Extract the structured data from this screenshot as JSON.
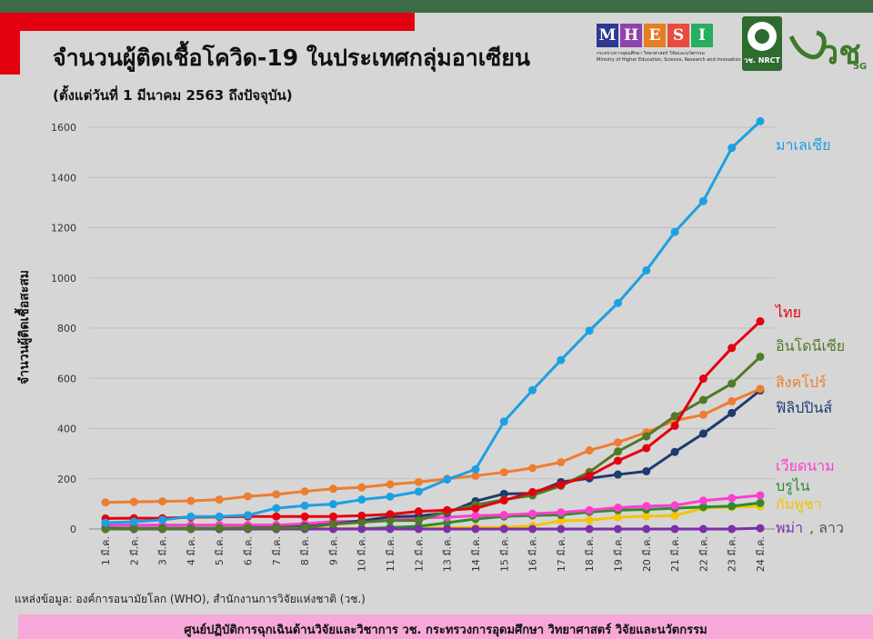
{
  "header": {
    "title": "จำนวนผู้ติดเชื้อโควิด-19 ในประเทศกลุ่มอาเซียน",
    "subtitle": "(ตั้งแต่วันที่ 1 มีนาคม 2563 ถึงปัจจุบัน)"
  },
  "logos": {
    "mhesi_letters": [
      "M",
      "H",
      "E",
      "S",
      "I"
    ],
    "mhesi_colors": [
      "#2b3990",
      "#8e44ad",
      "#e67e22",
      "#e74c3c",
      "#27ae60"
    ],
    "mhesi_caption_th": "กระทรวงการอุดมศึกษา วิทยาศาสตร์ วิจัยและนวัตกรรม",
    "mhesi_caption_en": "Ministry of Higher Education, Science, Research and Innovation",
    "nrct_label": "วช. NRCT",
    "vch_text": "วช",
    "vch_5g": "5G"
  },
  "chart_data": {
    "type": "line",
    "title": "จำนวนผู้ติดเชื้อโควิด-19 ในประเทศกลุ่มอาเซียน",
    "xlabel": "",
    "ylabel": "จำนวนผู้ติดเชื้อสะสม",
    "ylim": [
      0,
      1600
    ],
    "yticks": [
      0,
      200,
      400,
      600,
      800,
      1000,
      1200,
      1400,
      1600
    ],
    "grid": true,
    "categories": [
      "1 มี.ค.",
      "2 มี.ค.",
      "3 มี.ค.",
      "4 มี.ค.",
      "5 มี.ค.",
      "6 มี.ค.",
      "7 มี.ค.",
      "8 มี.ค.",
      "9 มี.ค.",
      "10 มี.ค.",
      "11 มี.ค.",
      "12 มี.ค.",
      "13 มี.ค.",
      "14 มี.ค.",
      "15 มี.ค.",
      "16 มี.ค.",
      "17 มี.ค.",
      "18 มี.ค.",
      "19 มี.ค.",
      "20 มี.ค.",
      "21 มี.ค.",
      "22 มี.ค.",
      "23 มี.ค.",
      "24 มี.ค."
    ],
    "series": [
      {
        "name": "กัมพูชา",
        "color": "#f5c400",
        "values": [
          1,
          1,
          1,
          1,
          1,
          1,
          1,
          1,
          2,
          2,
          3,
          3,
          5,
          7,
          7,
          12,
          33,
          35,
          47,
          51,
          53,
          84,
          87,
          91
        ]
      },
      {
        "name": "บรูไน",
        "color": "#2e8b2e",
        "values": [
          0,
          0,
          0,
          0,
          0,
          0,
          0,
          0,
          0,
          1,
          6,
          11,
          25,
          40,
          50,
          54,
          56,
          68,
          75,
          78,
          83,
          88,
          91,
          104
        ]
      },
      {
        "name": "เวียดนาม",
        "color": "#ff3dcf",
        "values": [
          16,
          16,
          16,
          16,
          16,
          16,
          16,
          21,
          30,
          31,
          39,
          44,
          47,
          53,
          56,
          61,
          66,
          75,
          85,
          91,
          94,
          113,
          123,
          134
        ]
      },
      {
        "name": "พม่า, ลาว",
        "color": "#7b2fa8",
        "values": [
          0,
          0,
          0,
          0,
          0,
          0,
          0,
          0,
          0,
          0,
          0,
          0,
          0,
          0,
          0,
          0,
          0,
          0,
          0,
          0,
          0,
          0,
          0,
          3
        ]
      },
      {
        "name": "ฟิลิปปินส์",
        "color": "#1f3a6e",
        "values": [
          3,
          3,
          3,
          3,
          3,
          5,
          6,
          10,
          20,
          33,
          49,
          52,
          64,
          111,
          140,
          142,
          187,
          202,
          217,
          230,
          307,
          380,
          462,
          552
        ]
      },
      {
        "name": "สิงคโปร์",
        "color": "#ed7d31",
        "values": [
          106,
          108,
          110,
          112,
          117,
          130,
          138,
          150,
          160,
          166,
          178,
          187,
          200,
          212,
          226,
          243,
          266,
          313,
          345,
          385,
          432,
          455,
          509,
          558
        ]
      },
      {
        "name": "อินโดนีเซีย",
        "color": "#4f7a28",
        "values": [
          0,
          2,
          2,
          2,
          4,
          4,
          4,
          6,
          19,
          27,
          34,
          34,
          69,
          96,
          117,
          134,
          172,
          227,
          309,
          369,
          450,
          514,
          579,
          686
        ]
      },
      {
        "name": "ไทย",
        "color": "#e3000f",
        "values": [
          42,
          43,
          43,
          47,
          48,
          50,
          50,
          50,
          50,
          53,
          59,
          70,
          75,
          82,
          114,
          147,
          177,
          212,
          272,
          322,
          411,
          599,
          721,
          827
        ]
      },
      {
        "name": "มาเลเซีย",
        "color": "#1ba1e2",
        "values": [
          25,
          29,
          36,
          50,
          50,
          55,
          83,
          93,
          99,
          117,
          129,
          149,
          197,
          238,
          428,
          553,
          673,
          790,
          900,
          1030,
          1183,
          1306,
          1518,
          1624
        ]
      }
    ],
    "legend": [
      {
        "label": "มาเลเซีย",
        "color": "#1ba1e2"
      },
      {
        "label": "ไทย",
        "color": "#e3000f"
      },
      {
        "label": "อินโดนีเซีย",
        "color": "#4f7a28"
      },
      {
        "label": "สิงคโปร์",
        "color": "#ed7d31"
      },
      {
        "label": "ฟิลิปปินส์",
        "color": "#1f3a6e"
      },
      {
        "label": "เวียดนาม",
        "color": "#ff3dcf"
      },
      {
        "label": "บรูไน",
        "color": "#2e8b2e"
      },
      {
        "label": "กัมพูชา",
        "color": "#f5c400"
      },
      {
        "label": "พม่า",
        "color": "#7b2fa8"
      },
      {
        "label": ", ลาว",
        "color": "#555555"
      }
    ]
  },
  "source": "แหล่งข้อมูล: องค์การอนามัยโลก (WHO), สำนักงานการวิจัยแห่งชาติ (วช.)",
  "footer": "ศูนย์ปฏิบัติการฉุกเฉินด้านวิจัยและวิชาการ   วช.   กระทรวงการอุดมศึกษา วิทยาศาสตร์ วิจัยและนวัตกรรม"
}
